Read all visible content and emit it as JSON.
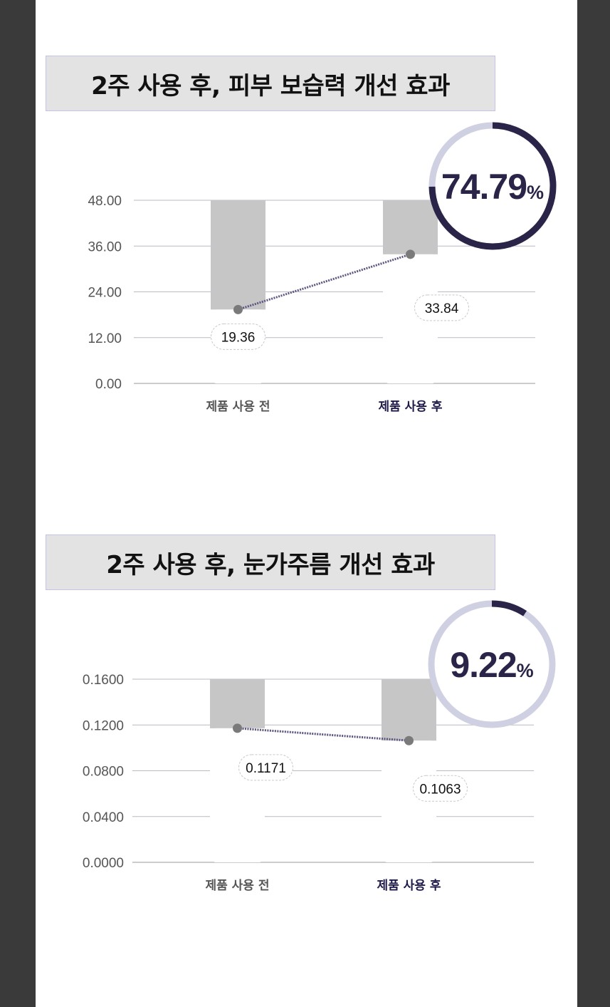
{
  "colors": {
    "ring_dark": "#2a2448",
    "ring_light": "#cfd1e3",
    "bar_bg": "#c6c6c6",
    "line": "#5a5680",
    "dot": "#7a7a7a",
    "grid": "#b9b9c9",
    "cat_before": "#555555",
    "cat_after": "#1d1a4a"
  },
  "chart_data": [
    {
      "type": "line",
      "title": "2주 사용 후, 피부 보습력 개선 효과",
      "categories": [
        "제품 사용 전",
        "제품 사용 후"
      ],
      "values": [
        19.36,
        33.84
      ],
      "value_labels": [
        "19.36",
        "33.84"
      ],
      "yticks": [
        "48.00",
        "36.00",
        "24.00",
        "12.00",
        "0.00"
      ],
      "ytick_values": [
        48,
        36,
        24,
        12,
        0
      ],
      "ylim": [
        0,
        48
      ],
      "improvement_value": "74.79",
      "improvement_unit": "%",
      "improvement_fraction": 0.7479
    },
    {
      "type": "line",
      "title": "2주 사용 후, 눈가주름 개선 효과",
      "categories": [
        "제품 사용 전",
        "제품 사용 후"
      ],
      "values": [
        0.1171,
        0.1063
      ],
      "value_labels": [
        "0.1171",
        "0.1063"
      ],
      "yticks": [
        "0.1600",
        "0.1200",
        "0.0800",
        "0.0400",
        "0.0000"
      ],
      "ytick_values": [
        0.16,
        0.12,
        0.08,
        0.04,
        0
      ],
      "ylim": [
        0,
        0.16
      ],
      "improvement_value": "9.22",
      "improvement_unit": "%",
      "improvement_fraction": 0.0922
    }
  ]
}
